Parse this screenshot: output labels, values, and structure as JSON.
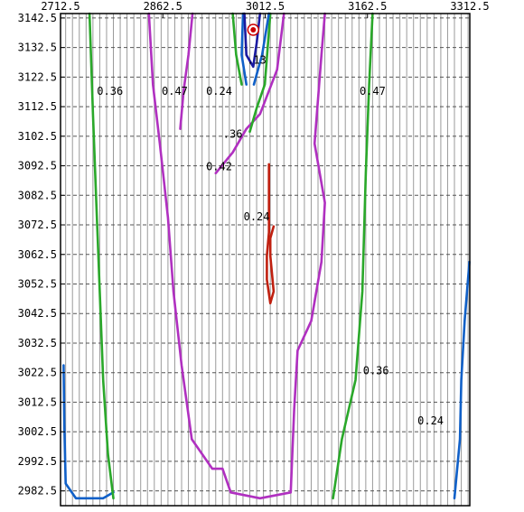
{
  "chart_data": {
    "type": "contour",
    "title": "",
    "xlabel": "",
    "ylabel": "",
    "x_ticks": [
      "2712.5",
      "2862.5",
      "3012.5",
      "3162.5",
      "3312.5"
    ],
    "y_ticks": [
      "3142.5",
      "3132.5",
      "3122.5",
      "3112.5",
      "3102.5",
      "3092.5",
      "3082.5",
      "3072.5",
      "3062.5",
      "3052.5",
      "3042.5",
      "3032.5",
      "3022.5",
      "3012.5",
      "3002.5",
      "2992.5",
      "2982.5"
    ],
    "xlim": [
      2712.5,
      3312.5
    ],
    "ylim": [
      2977.5,
      3144
    ],
    "grid": true,
    "contour_labels": [
      {
        "text": "0.36",
        "x": 2785,
        "y": 3116.5
      },
      {
        "text": "0.47",
        "x": 2880,
        "y": 3116.5
      },
      {
        "text": "0.24",
        "x": 2945,
        "y": 3116.5
      },
      {
        "text": "0.47",
        "x": 3170,
        "y": 3116.5
      },
      {
        "text": ".13",
        "x": 3000,
        "y": 3127
      },
      {
        "text": ".36",
        "x": 2965,
        "y": 3102
      },
      {
        "text": "0.42",
        "x": 2945,
        "y": 3091
      },
      {
        "text": "0.24",
        "x": 3000,
        "y": 3074
      },
      {
        "text": "0.36",
        "x": 3175,
        "y": 3022
      },
      {
        "text": "0.24",
        "x": 3255,
        "y": 3005
      }
    ],
    "marker": {
      "x": 2995,
      "y": 3138.5,
      "color": "#cc0000"
    },
    "contours": [
      {
        "level": "0.24",
        "color": "#1060c8",
        "points": [
          [
            3290,
            2980
          ],
          [
            3298,
            3000
          ],
          [
            3300,
            3020
          ],
          [
            3305,
            3040
          ],
          [
            3312,
            3060
          ]
        ]
      },
      {
        "level": "0.24",
        "color": "#1060c8",
        "points": [
          [
            2717,
            3025
          ],
          [
            2718,
            3005
          ],
          [
            2720,
            2985
          ],
          [
            2735,
            2980
          ],
          [
            2775,
            2980
          ],
          [
            2790,
            2982
          ]
        ]
      },
      {
        "level": "0.36",
        "color": "#2aa82a",
        "points": [
          [
            2790,
            2980
          ],
          [
            2782,
            2995
          ],
          [
            2775,
            3020
          ],
          [
            2770,
            3050
          ],
          [
            2765,
            3080
          ],
          [
            2760,
            3110
          ],
          [
            2755,
            3144
          ]
        ]
      },
      {
        "level": "0.36",
        "color": "#2aa82a",
        "points": [
          [
            3112,
            2980
          ],
          [
            3125,
            3000
          ],
          [
            3145,
            3020
          ],
          [
            3155,
            3050
          ],
          [
            3160,
            3090
          ],
          [
            3165,
            3120
          ],
          [
            3170,
            3144
          ]
        ]
      },
      {
        "level": "0.47",
        "color": "#b030c0",
        "points": [
          [
            2842,
            3144
          ],
          [
            2848,
            3120
          ],
          [
            2858,
            3100
          ],
          [
            2870,
            3075
          ],
          [
            2878,
            3050
          ],
          [
            2890,
            3025
          ],
          [
            2905,
            3000
          ],
          [
            2935,
            2990
          ],
          [
            2950,
            2990
          ],
          [
            2962,
            2982
          ],
          [
            3005,
            2980
          ],
          [
            3050,
            2982
          ],
          [
            3055,
            3010
          ],
          [
            3060,
            3030
          ],
          [
            3080,
            3040
          ],
          [
            3095,
            3060
          ],
          [
            3100,
            3080
          ],
          [
            3085,
            3100
          ],
          [
            3090,
            3115
          ],
          [
            3095,
            3130
          ],
          [
            3100,
            3144
          ]
        ]
      },
      {
        "level": "0.42",
        "color": "#b030c0",
        "points": [
          [
            2888,
            3105
          ],
          [
            2893,
            3118
          ],
          [
            2900,
            3130
          ],
          [
            2906,
            3144
          ]
        ]
      },
      {
        "level": "0.42",
        "color": "#b030c0",
        "points": [
          [
            2940,
            3090
          ],
          [
            2965,
            3097
          ],
          [
            2985,
            3105
          ],
          [
            3005,
            3110
          ],
          [
            3030,
            3125
          ],
          [
            3040,
            3144
          ]
        ]
      },
      {
        "level": "0.36",
        "color": "#2aa82a",
        "points": [
          [
            2990,
            3104
          ],
          [
            3000,
            3112
          ],
          [
            3012,
            3120
          ],
          [
            3020,
            3144
          ]
        ]
      },
      {
        "level": "0.36",
        "color": "#2aa82a",
        "points": [
          [
            2978,
            3120
          ],
          [
            2970,
            3130
          ],
          [
            2965,
            3144
          ]
        ]
      },
      {
        "level": "0.24",
        "color": "#1060c8",
        "points": [
          [
            2985,
            3120
          ],
          [
            2978,
            3130
          ],
          [
            2980,
            3144
          ]
        ]
      },
      {
        "level": "0.24",
        "color": "#1060c8",
        "points": [
          [
            2996,
            3120
          ],
          [
            3008,
            3130
          ],
          [
            3018,
            3144
          ]
        ]
      },
      {
        "level": "0.13",
        "color": "#1a1aa0",
        "points": [
          [
            2982,
            3144
          ],
          [
            2985,
            3130
          ],
          [
            2995,
            3126
          ],
          [
            3000,
            3134
          ],
          [
            3005,
            3144
          ]
        ]
      },
      {
        "level": "0.47",
        "color": "#c02010",
        "points": [
          [
            3018,
            3093
          ],
          [
            3018,
            3082
          ],
          [
            3018,
            3070
          ],
          [
            3015,
            3062
          ],
          [
            3015,
            3054
          ],
          [
            3020,
            3046
          ],
          [
            3025,
            3050
          ],
          [
            3020,
            3062
          ],
          [
            3020,
            3068
          ],
          [
            3025,
            3072
          ]
        ]
      }
    ]
  }
}
